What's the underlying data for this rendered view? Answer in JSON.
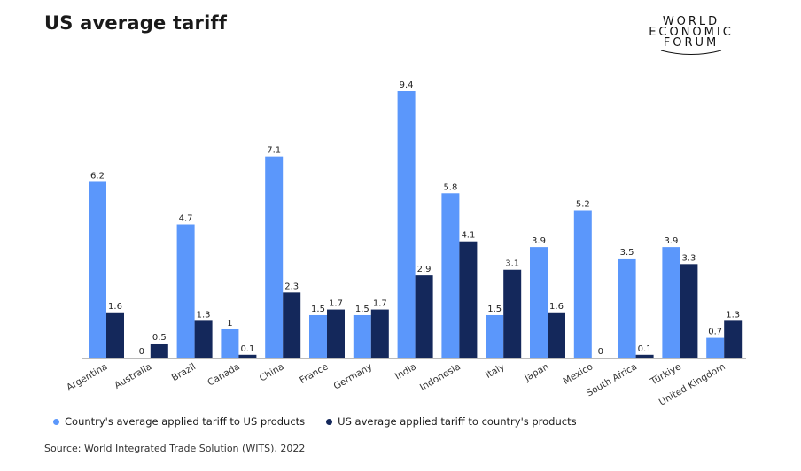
{
  "title": "US average tariff",
  "logo": {
    "line1": "WORLD",
    "line2": "ECONOMIC",
    "line3": "FORUM"
  },
  "source": "Source: World Integrated Trade Solution (WITS), 2022",
  "colors": {
    "series1": "#5b97fb",
    "series2": "#14285b",
    "axis": "#bbbbbb"
  },
  "chart_data": {
    "type": "bar",
    "title": "US average tariff",
    "categories": [
      "Argentina",
      "Australia",
      "Brazil",
      "Canada",
      "China",
      "France",
      "Germany",
      "India",
      "Indonesia",
      "Italy",
      "Japan",
      "Mexico",
      "South Africa",
      "Türkiye",
      "United Kingdom"
    ],
    "series": [
      {
        "name": "Country's average applied tariff to US products",
        "values": [
          6.2,
          0,
          4.7,
          1,
          7.1,
          1.5,
          1.5,
          9.4,
          5.8,
          1.5,
          3.9,
          5.2,
          3.5,
          3.9,
          0.7
        ]
      },
      {
        "name": "US average applied tariff to country's products",
        "values": [
          1.6,
          0.5,
          1.3,
          0.1,
          2.3,
          1.7,
          1.7,
          2.9,
          4.1,
          3.1,
          1.6,
          0,
          0.1,
          3.3,
          1.3
        ]
      }
    ],
    "ylim": [
      0,
      9.4
    ],
    "grid": false,
    "legend": "bottom"
  }
}
